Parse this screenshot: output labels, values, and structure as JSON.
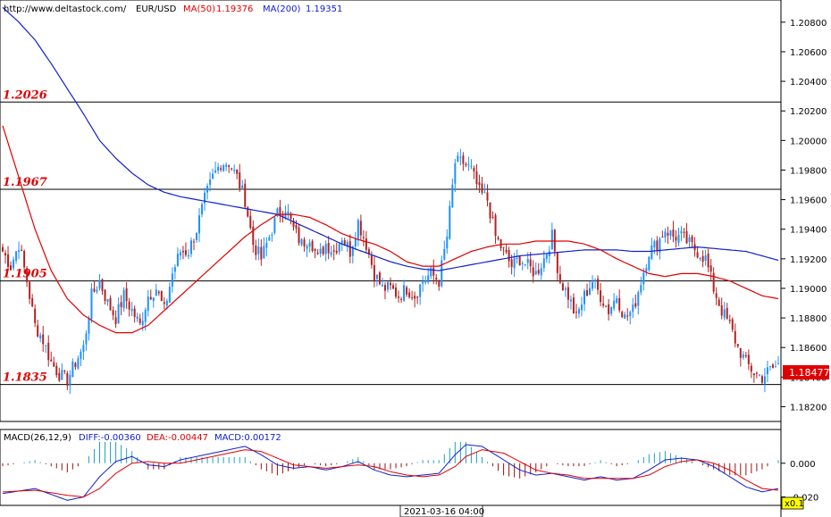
{
  "header": {
    "url": "http://www.deltastock.com/",
    "symbol": "EUR/USD",
    "ma50_label": "MA(50)",
    "ma50_value": "1.19376",
    "ma200_label": "MA(200)",
    "ma200_value": "1.19351"
  },
  "macd_header": {
    "label": "MACD(26,12,9)",
    "diff": "DIFF:-0.00360",
    "dea": "DEA:-0.00447",
    "macd": "MACD:0.00172"
  },
  "current_price": "1.18477",
  "time_label": "2021-03-16 04:00",
  "zoom_label": "x0.1",
  "colors": {
    "up": "#1e90ff",
    "down": "#b22222",
    "ma50": "#e00000",
    "ma200": "#1020d0",
    "level": "#e00000"
  },
  "chart_data": {
    "type": "candlestick",
    "price_axis": {
      "ticks": [
        "1.20800",
        "1.20600",
        "1.20400",
        "1.20200",
        "1.20000",
        "1.19800",
        "1.19600",
        "1.19400",
        "1.19200",
        "1.19000",
        "1.18800",
        "1.18600",
        "1.18400",
        "1.18200"
      ],
      "range": [
        1.181,
        1.2095
      ]
    },
    "levels": [
      {
        "label": "1.2026",
        "value": 1.2026
      },
      {
        "label": "1.1967",
        "value": 1.1967
      },
      {
        "label": "1.1905",
        "value": 1.1905
      },
      {
        "label": "1.1835",
        "value": 1.1835
      }
    ],
    "close_path": [
      [
        0,
        1.1925
      ],
      [
        3,
        1.1915
      ],
      [
        6,
        1.193
      ],
      [
        9,
        1.1905
      ],
      [
        12,
        1.1875
      ],
      [
        15,
        1.1865
      ],
      [
        18,
        1.185
      ],
      [
        21,
        1.1842
      ],
      [
        24,
        1.1838
      ],
      [
        27,
        1.185
      ],
      [
        30,
        1.186
      ],
      [
        33,
        1.1895
      ],
      [
        36,
        1.1905
      ],
      [
        39,
        1.189
      ],
      [
        42,
        1.188
      ],
      [
        45,
        1.1895
      ],
      [
        48,
        1.1885
      ],
      [
        51,
        1.1875
      ],
      [
        54,
        1.1895
      ],
      [
        57,
        1.19
      ],
      [
        60,
        1.1885
      ],
      [
        63,
        1.191
      ],
      [
        66,
        1.1925
      ],
      [
        69,
        1.1925
      ],
      [
        72,
        1.194
      ],
      [
        75,
        1.196
      ],
      [
        78,
        1.1975
      ],
      [
        81,
        1.1985
      ],
      [
        84,
        1.1985
      ],
      [
        87,
        1.1975
      ],
      [
        90,
        1.196
      ],
      [
        93,
        1.193
      ],
      [
        96,
        1.192
      ],
      [
        99,
        1.1935
      ],
      [
        102,
        1.195
      ],
      [
        105,
        1.1955
      ],
      [
        108,
        1.194
      ],
      [
        111,
        1.193
      ],
      [
        114,
        1.1935
      ],
      [
        117,
        1.192
      ],
      [
        120,
        1.193
      ],
      [
        123,
        1.1925
      ],
      [
        126,
        1.1935
      ],
      [
        129,
        1.1925
      ],
      [
        132,
        1.1945
      ],
      [
        135,
        1.193
      ],
      [
        138,
        1.191
      ],
      [
        141,
        1.19
      ],
      [
        144,
        1.19
      ],
      [
        147,
        1.1895
      ],
      [
        150,
        1.19
      ],
      [
        153,
        1.1895
      ],
      [
        156,
        1.1905
      ],
      [
        159,
        1.191
      ],
      [
        162,
        1.1905
      ],
      [
        165,
        1.1935
      ],
      [
        168,
        1.1985
      ],
      [
        171,
        1.1985
      ],
      [
        174,
        1.198
      ],
      [
        177,
        1.1965
      ],
      [
        180,
        1.196
      ],
      [
        183,
        1.1935
      ],
      [
        186,
        1.1925
      ],
      [
        189,
        1.1915
      ],
      [
        192,
        1.192
      ],
      [
        195,
        1.1915
      ],
      [
        198,
        1.191
      ],
      [
        201,
        1.192
      ],
      [
        204,
        1.1935
      ],
      [
        207,
        1.1905
      ],
      [
        210,
        1.1895
      ],
      [
        213,
        1.188
      ],
      [
        216,
        1.1895
      ],
      [
        219,
        1.1905
      ],
      [
        222,
        1.1895
      ],
      [
        225,
        1.1885
      ],
      [
        228,
        1.1895
      ],
      [
        231,
        1.188
      ],
      [
        234,
        1.1885
      ],
      [
        237,
        1.1905
      ],
      [
        240,
        1.1925
      ],
      [
        243,
        1.193
      ],
      [
        246,
        1.194
      ],
      [
        249,
        1.1935
      ],
      [
        252,
        1.1935
      ],
      [
        255,
        1.193
      ],
      [
        258,
        1.1925
      ],
      [
        261,
        1.192
      ],
      [
        264,
        1.19
      ],
      [
        267,
        1.1885
      ],
      [
        270,
        1.1875
      ],
      [
        273,
        1.186
      ],
      [
        276,
        1.185
      ],
      [
        279,
        1.1843
      ],
      [
        282,
        1.184
      ],
      [
        285,
        1.1845
      ],
      [
        288,
        1.1848
      ]
    ],
    "ma50_path": [
      [
        0,
        1.201
      ],
      [
        6,
        1.1975
      ],
      [
        12,
        1.194
      ],
      [
        18,
        1.1912
      ],
      [
        24,
        1.1893
      ],
      [
        30,
        1.1882
      ],
      [
        36,
        1.1875
      ],
      [
        42,
        1.187
      ],
      [
        48,
        1.187
      ],
      [
        54,
        1.1875
      ],
      [
        60,
        1.1885
      ],
      [
        66,
        1.1895
      ],
      [
        72,
        1.1905
      ],
      [
        78,
        1.1915
      ],
      [
        84,
        1.1925
      ],
      [
        90,
        1.1935
      ],
      [
        96,
        1.1943
      ],
      [
        102,
        1.195
      ],
      [
        108,
        1.195
      ],
      [
        114,
        1.1948
      ],
      [
        120,
        1.1943
      ],
      [
        126,
        1.1937
      ],
      [
        132,
        1.1933
      ],
      [
        138,
        1.193
      ],
      [
        144,
        1.1925
      ],
      [
        150,
        1.1918
      ],
      [
        156,
        1.1915
      ],
      [
        162,
        1.1915
      ],
      [
        168,
        1.192
      ],
      [
        174,
        1.1925
      ],
      [
        180,
        1.1928
      ],
      [
        186,
        1.193
      ],
      [
        192,
        1.193
      ],
      [
        198,
        1.1932
      ],
      [
        204,
        1.1932
      ],
      [
        210,
        1.1932
      ],
      [
        216,
        1.193
      ],
      [
        222,
        1.1926
      ],
      [
        228,
        1.192
      ],
      [
        234,
        1.1915
      ],
      [
        240,
        1.191
      ],
      [
        246,
        1.1908
      ],
      [
        252,
        1.191
      ],
      [
        258,
        1.191
      ],
      [
        264,
        1.1908
      ],
      [
        270,
        1.1905
      ],
      [
        276,
        1.19
      ],
      [
        282,
        1.1895
      ],
      [
        288,
        1.1893
      ]
    ],
    "ma200_path": [
      [
        0,
        1.209
      ],
      [
        6,
        1.208
      ],
      [
        12,
        1.2068
      ],
      [
        18,
        1.2052
      ],
      [
        24,
        1.2035
      ],
      [
        30,
        1.2018
      ],
      [
        36,
        1.2
      ],
      [
        42,
        1.1988
      ],
      [
        48,
        1.1978
      ],
      [
        54,
        1.197
      ],
      [
        60,
        1.1965
      ],
      [
        66,
        1.1962
      ],
      [
        72,
        1.196
      ],
      [
        78,
        1.1958
      ],
      [
        84,
        1.1956
      ],
      [
        90,
        1.1954
      ],
      [
        96,
        1.1952
      ],
      [
        102,
        1.195
      ],
      [
        108,
        1.1945
      ],
      [
        114,
        1.194
      ],
      [
        120,
        1.1935
      ],
      [
        126,
        1.193
      ],
      [
        132,
        1.1926
      ],
      [
        138,
        1.1922
      ],
      [
        144,
        1.1918
      ],
      [
        150,
        1.1915
      ],
      [
        156,
        1.1913
      ],
      [
        162,
        1.1912
      ],
      [
        168,
        1.1914
      ],
      [
        174,
        1.1916
      ],
      [
        180,
        1.1918
      ],
      [
        186,
        1.192
      ],
      [
        192,
        1.1922
      ],
      [
        198,
        1.1923
      ],
      [
        204,
        1.1924
      ],
      [
        210,
        1.1925
      ],
      [
        216,
        1.1926
      ],
      [
        222,
        1.1926
      ],
      [
        228,
        1.1926
      ],
      [
        234,
        1.1925
      ],
      [
        240,
        1.1925
      ],
      [
        246,
        1.1926
      ],
      [
        252,
        1.1927
      ],
      [
        258,
        1.1928
      ],
      [
        264,
        1.1927
      ],
      [
        270,
        1.1926
      ],
      [
        276,
        1.1925
      ],
      [
        282,
        1.1922
      ],
      [
        288,
        1.1919
      ]
    ],
    "macd_axis": {
      "ticks": [
        "0.000",
        "-0.020"
      ],
      "range": [
        -0.025,
        0.02
      ]
    },
    "diff_path": [
      [
        0,
        -0.018
      ],
      [
        12,
        -0.015
      ],
      [
        24,
        -0.022
      ],
      [
        30,
        -0.02
      ],
      [
        36,
        -0.008
      ],
      [
        42,
        0.001
      ],
      [
        48,
        0.004
      ],
      [
        54,
        -0.001
      ],
      [
        60,
        -0.002
      ],
      [
        66,
        0.002
      ],
      [
        72,
        0.004
      ],
      [
        78,
        0.006
      ],
      [
        84,
        0.008
      ],
      [
        90,
        0.01
      ],
      [
        96,
        0.005
      ],
      [
        102,
        -0.001
      ],
      [
        108,
        -0.003
      ],
      [
        114,
        -0.002
      ],
      [
        120,
        -0.004
      ],
      [
        126,
        -0.002
      ],
      [
        132,
        0.001
      ],
      [
        138,
        -0.004
      ],
      [
        144,
        -0.007
      ],
      [
        150,
        -0.008
      ],
      [
        156,
        -0.007
      ],
      [
        162,
        -0.006
      ],
      [
        168,
        0.005
      ],
      [
        172,
        0.011
      ],
      [
        178,
        0.01
      ],
      [
        186,
        0.002
      ],
      [
        192,
        -0.004
      ],
      [
        198,
        -0.007
      ],
      [
        204,
        -0.006
      ],
      [
        210,
        -0.008
      ],
      [
        216,
        -0.01
      ],
      [
        222,
        -0.008
      ],
      [
        228,
        -0.01
      ],
      [
        234,
        -0.009
      ],
      [
        240,
        -0.004
      ],
      [
        246,
        0.002
      ],
      [
        252,
        0.003
      ],
      [
        258,
        0.002
      ],
      [
        264,
        -0.002
      ],
      [
        270,
        -0.008
      ],
      [
        276,
        -0.014
      ],
      [
        282,
        -0.017
      ],
      [
        288,
        -0.015
      ]
    ],
    "dea_path": [
      [
        0,
        -0.017
      ],
      [
        12,
        -0.016
      ],
      [
        24,
        -0.019
      ],
      [
        30,
        -0.02
      ],
      [
        36,
        -0.015
      ],
      [
        42,
        -0.006
      ],
      [
        48,
        0.0
      ],
      [
        54,
        0.001
      ],
      [
        60,
        0.0
      ],
      [
        66,
        0.0
      ],
      [
        72,
        0.002
      ],
      [
        78,
        0.004
      ],
      [
        84,
        0.006
      ],
      [
        90,
        0.008
      ],
      [
        96,
        0.007
      ],
      [
        102,
        0.003
      ],
      [
        108,
        -0.001
      ],
      [
        114,
        -0.002
      ],
      [
        120,
        -0.003
      ],
      [
        126,
        -0.002
      ],
      [
        132,
        -0.001
      ],
      [
        138,
        -0.002
      ],
      [
        144,
        -0.005
      ],
      [
        150,
        -0.007
      ],
      [
        156,
        -0.008
      ],
      [
        162,
        -0.007
      ],
      [
        168,
        -0.002
      ],
      [
        172,
        0.004
      ],
      [
        178,
        0.008
      ],
      [
        186,
        0.006
      ],
      [
        192,
        0.001
      ],
      [
        198,
        -0.004
      ],
      [
        204,
        -0.006
      ],
      [
        210,
        -0.007
      ],
      [
        216,
        -0.009
      ],
      [
        222,
        -0.009
      ],
      [
        228,
        -0.009
      ],
      [
        234,
        -0.009
      ],
      [
        240,
        -0.007
      ],
      [
        246,
        -0.002
      ],
      [
        252,
        0.001
      ],
      [
        258,
        0.002
      ],
      [
        264,
        0.0
      ],
      [
        270,
        -0.004
      ],
      [
        276,
        -0.01
      ],
      [
        282,
        -0.015
      ],
      [
        288,
        -0.016
      ]
    ]
  }
}
